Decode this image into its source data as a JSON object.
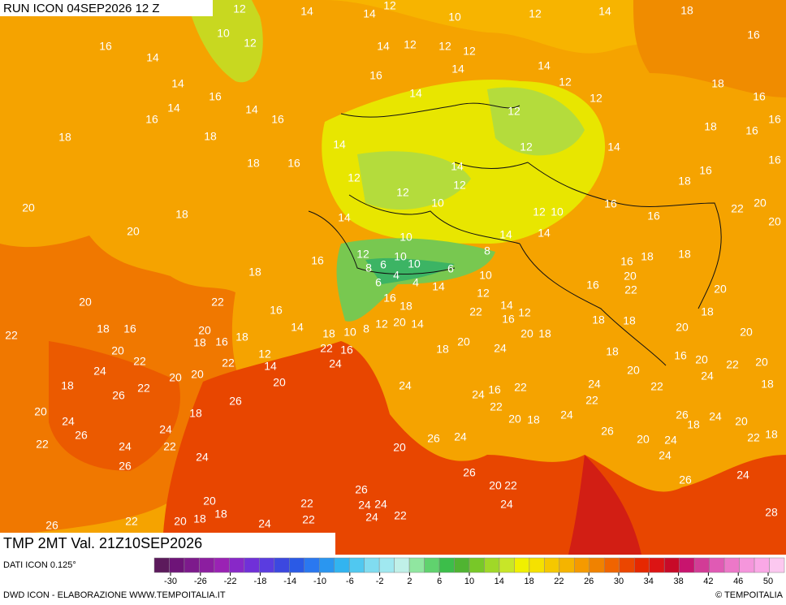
{
  "header": {
    "run": "RUN ICON 04SEP2026 12 Z"
  },
  "field": {
    "title": "TMP 2MT Val. 21Z10SEP2026",
    "labels": [
      12,
      14,
      14,
      12,
      10,
      12,
      14,
      18,
      16,
      16,
      10,
      12,
      14,
      14,
      12,
      12,
      12,
      16,
      14,
      14,
      12,
      18,
      14,
      16,
      14,
      12,
      16,
      14,
      14,
      16,
      16,
      12,
      18,
      16,
      18,
      18,
      14,
      12,
      14,
      16,
      18,
      16,
      14,
      16,
      16,
      12,
      12,
      12,
      18,
      10,
      16,
      22,
      20,
      20,
      18,
      14,
      12,
      10,
      16,
      20,
      20,
      10,
      14,
      14,
      16,
      12,
      8,
      18,
      8,
      6,
      10,
      10,
      6,
      10,
      16,
      18,
      18,
      4,
      4,
      6,
      14,
      20,
      16,
      22,
      20,
      20,
      22,
      16,
      16,
      18,
      12,
      18,
      22,
      14,
      12,
      18,
      18,
      18,
      16,
      20,
      14,
      10,
      18,
      8,
      12,
      20,
      14,
      16,
      20,
      18,
      22,
      18,
      16,
      18,
      20,
      20,
      22,
      16,
      20,
      18,
      24,
      20,
      12,
      18,
      16,
      20,
      22,
      20,
      22,
      22,
      14,
      24,
      24,
      20,
      20,
      20,
      24,
      18,
      18,
      22,
      20,
      24,
      24,
      22,
      26,
      26,
      24,
      16,
      22,
      22,
      22,
      24,
      18,
      20,
      24,
      20,
      18,
      24,
      26,
      26,
      24,
      20,
      26,
      18,
      20,
      24,
      24,
      26,
      22,
      18,
      22,
      24,
      22,
      20,
      24,
      24,
      26,
      26,
      20,
      22,
      24,
      26,
      26,
      20,
      22,
      24,
      24,
      24,
      22,
      18,
      24,
      18,
      22,
      22,
      20,
      24,
      26,
      28
    ],
    "colors": [
      "#5c1a5c",
      "#6e1478",
      "#7d1a8c",
      "#8c1ea0",
      "#9a22b4",
      "#8828c8",
      "#7030d8",
      "#5a3ce0",
      "#3c48e0",
      "#2a5ae6",
      "#2a78f0",
      "#2a96f0",
      "#32b4f0",
      "#50c8f0",
      "#80dcf0",
      "#a0e8f0",
      "#c0f0e8",
      "#90e6a0",
      "#60d26e",
      "#3cbe4a",
      "#50b432",
      "#78c828",
      "#a0d828",
      "#c8e628",
      "#f0f000",
      "#f5e100",
      "#f5c800",
      "#f5b400",
      "#f59a00",
      "#f08200",
      "#f06400",
      "#eb4600",
      "#e62800",
      "#dc1414",
      "#c80a28",
      "#c8146e",
      "#d23c96",
      "#e05ab4",
      "#ec78c8",
      "#f596dc",
      "#faa8e6",
      "#fcc8f0"
    ],
    "ticks": [
      -30,
      -26,
      -22,
      -18,
      -14,
      -10,
      -6,
      -2,
      2,
      6,
      10,
      14,
      18,
      22,
      26,
      30,
      34,
      38,
      42,
      46,
      50
    ]
  },
  "footer": {
    "data": "DATI ICON 0.125°",
    "credit": "DWD ICON - ELABORAZIONE WWW.TEMPOITALIA.IT",
    "copyright": "© TEMPOITALIA"
  }
}
